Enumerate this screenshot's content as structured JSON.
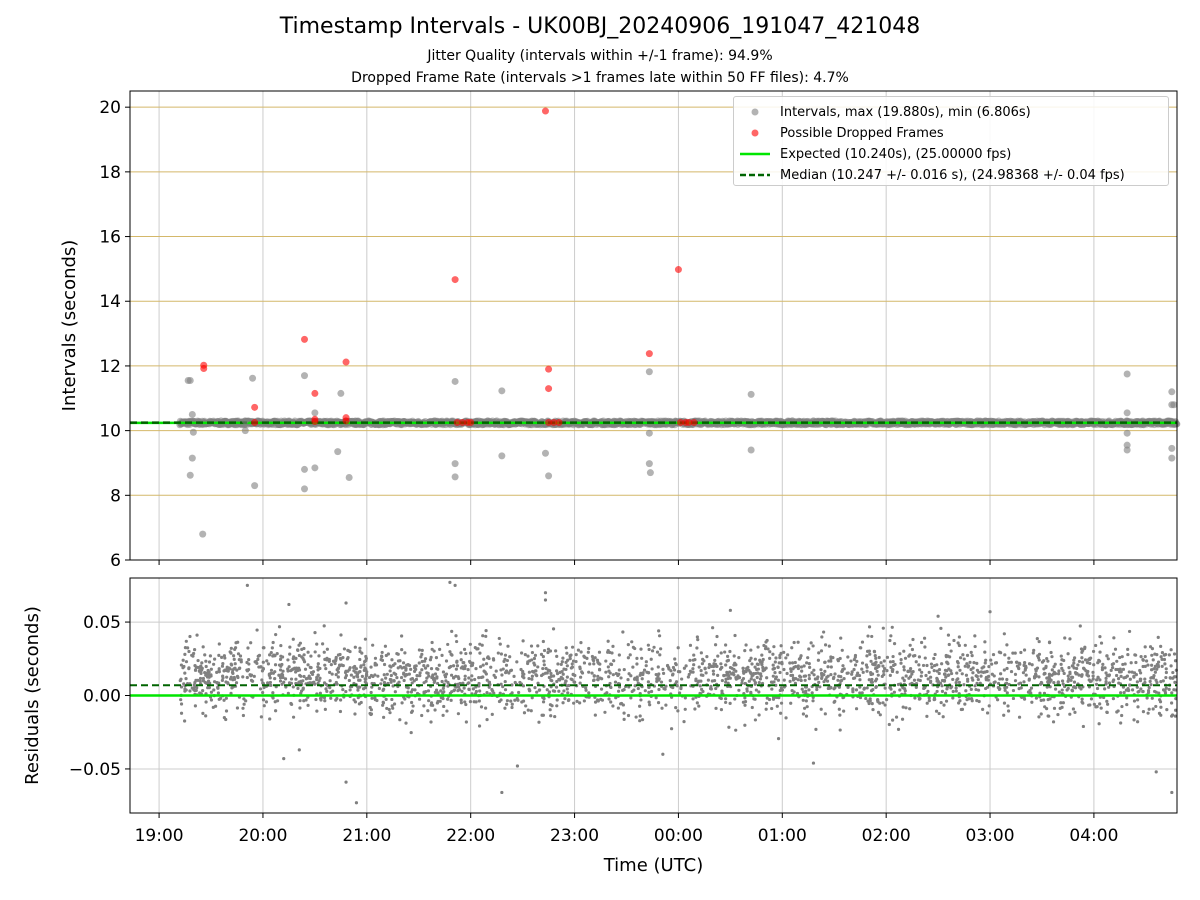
{
  "title": "Timestamp Intervals - UK00BJ_20240906_191047_421048",
  "subtitle1": "Jitter Quality (intervals within +/-1 frame): 94.9%",
  "subtitle2": "Dropped Frame Rate (intervals >1 frames late within 50 FF files): 4.7%",
  "colors": {
    "intervals": "#808080",
    "dropped": "#ff0000",
    "expected": "#00e600",
    "median": "#006400",
    "grid_top": "#d4b86a",
    "grid": "#cccccc"
  },
  "legend": [
    {
      "label": "Intervals, max (19.880s), min (6.806s)",
      "marker": "gray-dot"
    },
    {
      "label": "Possible Dropped Frames",
      "marker": "red-dot"
    },
    {
      "label": "Expected (10.240s), (25.00000 fps)",
      "marker": "green-line"
    },
    {
      "label": "Median (10.247 +/- 0.016 s), (24.98368 +/- 0.04 fps)",
      "marker": "dark-green-dashed"
    }
  ],
  "chart_data": [
    {
      "type": "scatter",
      "ylabel": "Intervals (seconds)",
      "ylim": [
        6,
        20.5
      ],
      "yticks": [
        6,
        8,
        10,
        12,
        14,
        16,
        18,
        20
      ],
      "xlim_hours": [
        18.72,
        28.8
      ],
      "expected": 10.24,
      "median": 10.247,
      "baseline_range_hours": [
        19.2,
        28.8
      ],
      "grid": "horizontal and vertical",
      "legend_position": "top-right",
      "series": [
        {
          "name": "Intervals, max (19.880s), min (6.806s)",
          "points": [
            [
              19.28,
              11.55
            ],
            [
              19.3,
              11.55
            ],
            [
              19.3,
              8.62
            ],
            [
              19.32,
              10.5
            ],
            [
              19.32,
              9.15
            ],
            [
              19.33,
              9.95
            ],
            [
              19.42,
              6.8
            ],
            [
              19.83,
              10.3
            ],
            [
              19.83,
              10.0
            ],
            [
              19.9,
              11.62
            ],
            [
              19.92,
              8.3
            ],
            [
              20.4,
              11.7
            ],
            [
              20.4,
              8.8
            ],
            [
              20.4,
              8.2
            ],
            [
              20.5,
              10.55
            ],
            [
              20.5,
              8.85
            ],
            [
              20.72,
              9.35
            ],
            [
              20.75,
              11.15
            ],
            [
              20.83,
              8.55
            ],
            [
              21.85,
              11.52
            ],
            [
              21.85,
              8.98
            ],
            [
              21.85,
              8.57
            ],
            [
              22.3,
              11.23
            ],
            [
              22.3,
              9.22
            ],
            [
              22.72,
              9.3
            ],
            [
              22.75,
              8.6
            ],
            [
              23.72,
              11.82
            ],
            [
              23.72,
              9.92
            ],
            [
              23.72,
              8.98
            ],
            [
              23.73,
              8.7
            ],
            [
              24.7,
              11.12
            ],
            [
              24.7,
              9.4
            ],
            [
              28.32,
              11.75
            ],
            [
              28.32,
              10.55
            ],
            [
              28.32,
              9.92
            ],
            [
              28.32,
              9.55
            ],
            [
              28.32,
              9.4
            ],
            [
              28.75,
              11.2
            ],
            [
              28.75,
              10.8
            ],
            [
              28.77,
              10.8
            ],
            [
              28.75,
              9.45
            ],
            [
              28.75,
              9.15
            ]
          ]
        },
        {
          "name": "Possible Dropped Frames",
          "points": [
            [
              19.43,
              12.02
            ],
            [
              19.43,
              11.92
            ],
            [
              19.92,
              10.72
            ],
            [
              19.92,
              10.25
            ],
            [
              20.4,
              12.82
            ],
            [
              20.5,
              11.15
            ],
            [
              20.5,
              10.35
            ],
            [
              20.5,
              10.28
            ],
            [
              20.8,
              12.12
            ],
            [
              20.8,
              10.4
            ],
            [
              20.8,
              10.3
            ],
            [
              21.85,
              14.67
            ],
            [
              21.87,
              10.25
            ],
            [
              21.92,
              10.25
            ],
            [
              21.97,
              10.25
            ],
            [
              22.0,
              10.25
            ],
            [
              22.72,
              19.88
            ],
            [
              22.75,
              11.9
            ],
            [
              22.75,
              11.3
            ],
            [
              22.75,
              10.25
            ],
            [
              22.8,
              10.25
            ],
            [
              22.85,
              10.25
            ],
            [
              23.72,
              12.38
            ],
            [
              24.0,
              14.98
            ],
            [
              24.02,
              10.25
            ],
            [
              24.07,
              10.25
            ],
            [
              24.1,
              10.25
            ],
            [
              24.15,
              10.25
            ]
          ]
        }
      ]
    },
    {
      "type": "scatter",
      "xlabel": "Time (UTC)",
      "ylabel": "Residuals (seconds)",
      "ylim": [
        -0.08,
        0.08
      ],
      "yticks": [
        -0.05,
        0.0,
        0.05
      ],
      "ytick_labels": [
        "−0.05",
        "0.00",
        "0.05"
      ],
      "xticks": [
        "19:00",
        "20:00",
        "21:00",
        "22:00",
        "23:00",
        "00:00",
        "01:00",
        "02:00",
        "03:00",
        "04:00"
      ],
      "xtick_hours": [
        19,
        20,
        21,
        22,
        23,
        24,
        25,
        26,
        27,
        28
      ],
      "expected": 0.0,
      "median": 0.007,
      "residual_mean": 0.012,
      "residual_spread": 0.016,
      "residual_range_hours": [
        19.2,
        28.8
      ],
      "residual_point_count": 2700,
      "outliers": [
        [
          19.85,
          0.075
        ],
        [
          20.25,
          0.062
        ],
        [
          20.8,
          0.063
        ],
        [
          21.8,
          0.077
        ],
        [
          21.85,
          0.075
        ],
        [
          22.72,
          0.07
        ],
        [
          22.72,
          0.065
        ],
        [
          24.5,
          0.058
        ],
        [
          26.5,
          0.054
        ],
        [
          27.0,
          0.057
        ],
        [
          20.2,
          -0.043
        ],
        [
          20.35,
          -0.037
        ],
        [
          20.8,
          -0.059
        ],
        [
          20.9,
          -0.073
        ],
        [
          22.3,
          -0.066
        ],
        [
          22.45,
          -0.048
        ],
        [
          23.85,
          -0.04
        ],
        [
          25.3,
          -0.046
        ],
        [
          28.6,
          -0.052
        ],
        [
          28.75,
          -0.066
        ]
      ]
    }
  ]
}
